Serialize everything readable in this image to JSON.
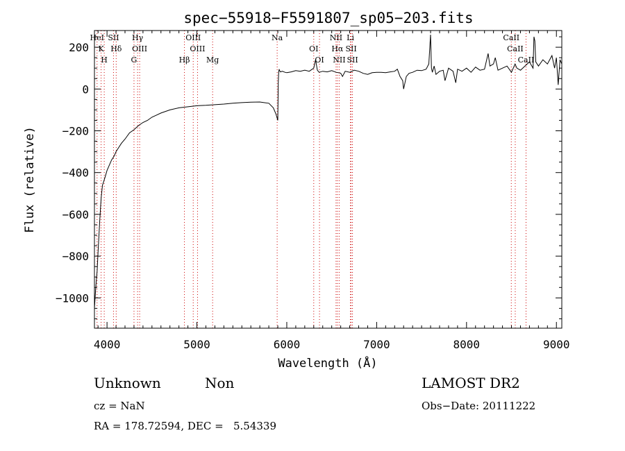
{
  "chart_data": {
    "type": "line",
    "title": "spec−55918−F5591807_sp05−203.fits",
    "xlabel": "Wavelength (Å)",
    "ylabel": "Flux (relative)",
    "xlim": [
      3860,
      9060
    ],
    "ylim": [
      -1145,
      280
    ],
    "xticks": [
      4000,
      5000,
      6000,
      7000,
      8000,
      9000
    ],
    "yticks": [
      200,
      0,
      -200,
      -400,
      -600,
      -800,
      -1000
    ],
    "grid": false,
    "legend": "none",
    "series_color": "#000000",
    "line_marker_color": "#cc0000",
    "series": [
      {
        "x": [
          3860,
          3875,
          3890,
          3900,
          3910,
          3920,
          3935,
          3950,
          3965,
          3980,
          4000,
          4020,
          4050,
          4080,
          4100,
          4130,
          4160,
          4200,
          4250,
          4300,
          4350,
          4400,
          4450,
          4500,
          4550,
          4600,
          4700,
          4800,
          4900,
          5000,
          5100,
          5200,
          5300,
          5400,
          5500,
          5600,
          5700,
          5800,
          5850,
          5880,
          5900,
          5905,
          5910,
          5915,
          5920,
          5930,
          5950,
          5980,
          6000,
          6050,
          6100,
          6150,
          6200,
          6250,
          6300,
          6320,
          6340,
          6360,
          6400,
          6450,
          6500,
          6550,
          6600,
          6620,
          6650,
          6700,
          6750,
          6800,
          6850,
          6900,
          6950,
          7000,
          7050,
          7100,
          7150,
          7200,
          7230,
          7260,
          7290,
          7300,
          7330,
          7360,
          7400,
          7450,
          7500,
          7550,
          7580,
          7600,
          7610,
          7620,
          7640,
          7660,
          7700,
          7740,
          7760,
          7800,
          7850,
          7880,
          7900,
          7950,
          8000,
          8050,
          8100,
          8150,
          8200,
          8240,
          8260,
          8300,
          8320,
          8350,
          8400,
          8450,
          8500,
          8540,
          8560,
          8600,
          8650,
          8700,
          8740,
          8750,
          8760,
          8770,
          8800,
          8850,
          8900,
          8950,
          8980,
          9000,
          9020,
          9040,
          9060
        ],
        "y": [
          -1050,
          -950,
          -870,
          -780,
          -700,
          -620,
          -520,
          -460,
          -440,
          -420,
          -390,
          -370,
          -340,
          -320,
          -300,
          -280,
          -260,
          -240,
          -210,
          -195,
          -175,
          -160,
          -150,
          -135,
          -125,
          -115,
          -100,
          -90,
          -85,
          -80,
          -78,
          -75,
          -72,
          -68,
          -65,
          -63,
          -62,
          -68,
          -90,
          -120,
          -150,
          30,
          80,
          95,
          88,
          82,
          85,
          80,
          78,
          82,
          88,
          85,
          90,
          85,
          100,
          140,
          90,
          80,
          85,
          82,
          88,
          80,
          76,
          60,
          85,
          80,
          90,
          85,
          75,
          70,
          78,
          80,
          80,
          78,
          82,
          85,
          95,
          60,
          40,
          0,
          60,
          75,
          80,
          90,
          88,
          95,
          120,
          260,
          100,
          80,
          110,
          70,
          85,
          90,
          40,
          100,
          85,
          30,
          95,
          85,
          100,
          80,
          105,
          90,
          95,
          170,
          110,
          120,
          150,
          90,
          100,
          110,
          80,
          120,
          100,
          90,
          110,
          130,
          100,
          250,
          230,
          130,
          110,
          140,
          120,
          160,
          100,
          150,
          20,
          140,
          120
        ]
      }
    ],
    "lines": [
      {
        "x": 3889,
        "labels": [
          "HeI"
        ]
      },
      {
        "x": 3934,
        "labels": [
          "K"
        ]
      },
      {
        "x": 3969,
        "labels": [
          "H"
        ]
      },
      {
        "x": 4072,
        "labels": [
          "SII"
        ]
      },
      {
        "x": 4102,
        "labels": [
          "Hδ"
        ]
      },
      {
        "x": 4300,
        "labels": [
          "G"
        ]
      },
      {
        "x": 4340,
        "labels": [
          "Hγ"
        ]
      },
      {
        "x": 4363,
        "labels": [
          "OIII"
        ]
      },
      {
        "x": 4861,
        "labels": [
          "Hβ"
        ]
      },
      {
        "x": 4959,
        "labels": [
          "OIII"
        ]
      },
      {
        "x": 5007,
        "labels": [
          "OIII"
        ]
      },
      {
        "x": 5175,
        "labels": [
          "Mg"
        ]
      },
      {
        "x": 5893,
        "labels": [
          "Na"
        ]
      },
      {
        "x": 6300,
        "labels": [
          "OI"
        ]
      },
      {
        "x": 6364,
        "labels": [
          "OI"
        ]
      },
      {
        "x": 6548,
        "labels": [
          "NII"
        ]
      },
      {
        "x": 6563,
        "labels": [
          "Hα"
        ]
      },
      {
        "x": 6583,
        "labels": [
          "NII"
        ]
      },
      {
        "x": 6708,
        "labels": [
          "Li"
        ]
      },
      {
        "x": 6716,
        "labels": [
          "SII"
        ]
      },
      {
        "x": 6731,
        "labels": [
          "SII"
        ]
      },
      {
        "x": 8498,
        "labels": [
          "CaII"
        ]
      },
      {
        "x": 8542,
        "labels": [
          "CaII"
        ]
      },
      {
        "x": 8662,
        "labels": [
          "CaII"
        ]
      }
    ]
  },
  "info": {
    "type_label": "Unknown",
    "subclass_label": "Non",
    "survey": "LAMOST DR2",
    "cz": "cz = NaN",
    "obs_date": "Obs−Date: 20111222",
    "coords": "RA = 178.72594, DEC =   5.54339"
  }
}
